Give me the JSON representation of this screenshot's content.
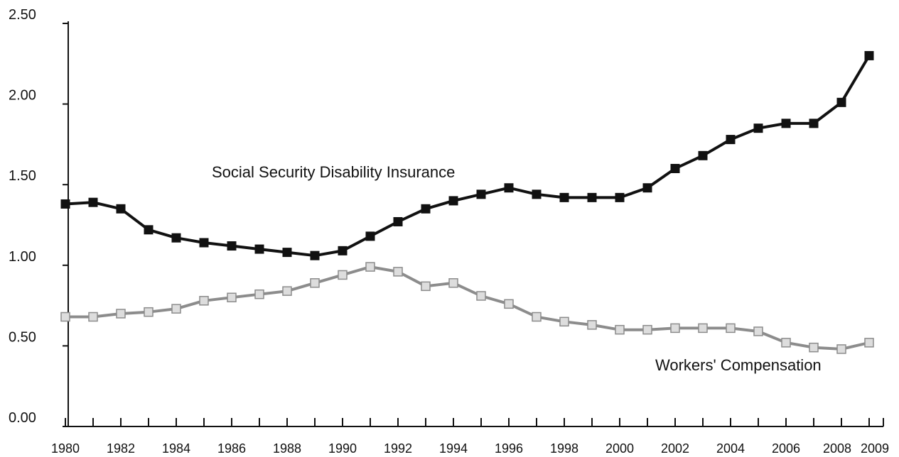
{
  "chart_data": {
    "type": "line",
    "title": "",
    "xlabel": "",
    "ylabel": "",
    "ylim": [
      0,
      2.5
    ],
    "xlim": [
      1980,
      2009
    ],
    "yticks": [
      "0.00",
      "0.50",
      "1.00",
      "1.50",
      "2.00",
      "2.50"
    ],
    "xticks": [
      "1980",
      "1982",
      "1984",
      "1986",
      "1988",
      "1990",
      "1992",
      "1994",
      "1996",
      "1998",
      "2000",
      "2002",
      "2004",
      "2006",
      "2008",
      "2009"
    ],
    "grid": false,
    "x": [
      1980,
      1981,
      1982,
      1983,
      1984,
      1985,
      1986,
      1987,
      1988,
      1989,
      1990,
      1991,
      1992,
      1993,
      1994,
      1995,
      1996,
      1997,
      1998,
      1999,
      2000,
      2001,
      2002,
      2003,
      2004,
      2005,
      2006,
      2007,
      2008,
      2009
    ],
    "series": [
      {
        "name": "Social Security Disability Insurance",
        "color": "#111111",
        "marker_fill": "#111111",
        "values": [
          1.38,
          1.39,
          1.35,
          1.22,
          1.17,
          1.14,
          1.12,
          1.1,
          1.08,
          1.06,
          1.09,
          1.18,
          1.27,
          1.35,
          1.4,
          1.44,
          1.48,
          1.44,
          1.42,
          1.42,
          1.42,
          1.48,
          1.6,
          1.68,
          1.78,
          1.85,
          1.88,
          1.88,
          2.01,
          2.3
        ]
      },
      {
        "name": "Workers' Compensation",
        "color": "#8c8c8c",
        "marker_fill": "#dddddd",
        "values": [
          0.68,
          0.68,
          0.7,
          0.71,
          0.73,
          0.78,
          0.8,
          0.82,
          0.84,
          0.89,
          0.94,
          0.99,
          0.96,
          0.87,
          0.89,
          0.81,
          0.76,
          0.68,
          0.65,
          0.63,
          0.6,
          0.6,
          0.61,
          0.61,
          0.61,
          0.59,
          0.52,
          0.49,
          0.48,
          0.52
        ]
      }
    ]
  }
}
